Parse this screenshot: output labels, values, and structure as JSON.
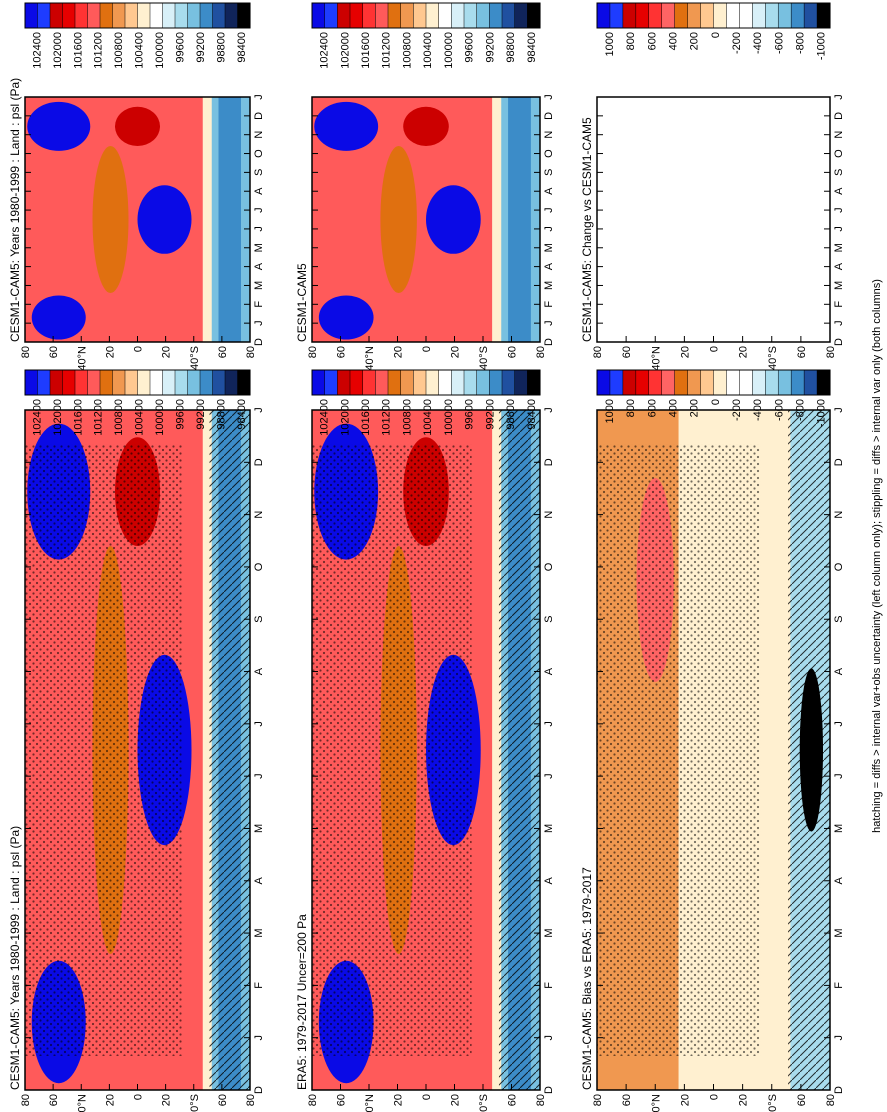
{
  "figure": {
    "footer": "hatching = diffs > internal var+obs uncertainty (left column only); stippling = diffs > internal var only (both columns)"
  },
  "colors": {
    "abs_scale": [
      "#0a0ae6",
      "#1e3cff",
      "#cc0000",
      "#e60000",
      "#ff3333",
      "#ff5a5a",
      "#e07010",
      "#f09850",
      "#ffc890",
      "#fff0d0",
      "#ffffff",
      "#d8f0f8",
      "#a8dced",
      "#78c0e0",
      "#3c8cc8",
      "#2050a0",
      "#10245a",
      "#000000"
    ],
    "diff_scale": [
      "#0a0ae6",
      "#1e3cff",
      "#cc0000",
      "#e60000",
      "#ff3333",
      "#ff6464",
      "#e07010",
      "#f09850",
      "#ffc890",
      "#fff0d0",
      "#ffffff",
      "#ffffff",
      "#d8f0f8",
      "#a8dced",
      "#78c0e0",
      "#3c8cc8",
      "#2050a0",
      "#000000"
    ]
  },
  "chart_data": [
    {
      "type": "heatmap",
      "panel": "top-left",
      "title": "CESM1-CAM5: Years 1980-1999 : Land : psl (Pa)",
      "x_ticks": [
        "D",
        "J",
        "F",
        "M",
        "A",
        "M",
        "J",
        "J",
        "A",
        "S",
        "O",
        "N",
        "D",
        "J"
      ],
      "y_ticks": [
        "80",
        "60",
        "40°N",
        "20",
        "0",
        "20",
        "40°S",
        "60",
        "80"
      ],
      "colorbar_labels": [
        "102400",
        "102000",
        "101600",
        "101200",
        "100800",
        "100400",
        "100000",
        "99600",
        "99200",
        "98800",
        "98400"
      ],
      "hatching": true,
      "stippling": true
    },
    {
      "type": "heatmap",
      "panel": "top-right",
      "title": "CESM1-CAM5: Years 1980-1999 : Land : psl (Pa)",
      "x_ticks": [
        "D",
        "J",
        "F",
        "M",
        "A",
        "M",
        "J",
        "J",
        "A",
        "S",
        "O",
        "N",
        "D",
        "J"
      ],
      "y_ticks": [
        "80",
        "60",
        "40°N",
        "20",
        "0",
        "20",
        "40°S",
        "60",
        "80"
      ],
      "colorbar_labels": [
        "102400",
        "102000",
        "101600",
        "101200",
        "100800",
        "100400",
        "100000",
        "99600",
        "99200",
        "98800",
        "98400"
      ],
      "hatching": false,
      "stippling": false
    },
    {
      "type": "heatmap",
      "panel": "middle-left",
      "title": "ERA5: 1979-2017 Uncer=200 Pa",
      "x_ticks": [
        "D",
        "J",
        "F",
        "M",
        "A",
        "M",
        "J",
        "J",
        "A",
        "S",
        "O",
        "N",
        "D",
        "J"
      ],
      "y_ticks": [
        "80",
        "60",
        "40°N",
        "20",
        "0",
        "20",
        "40°S",
        "60",
        "80"
      ],
      "colorbar_labels": [
        "102400",
        "102000",
        "101600",
        "101200",
        "100800",
        "100400",
        "100000",
        "99600",
        "99200",
        "98800",
        "98400"
      ],
      "hatching": true,
      "stippling": true
    },
    {
      "type": "heatmap",
      "panel": "middle-right",
      "title": "CESM1-CAM5",
      "x_ticks": [
        "D",
        "J",
        "F",
        "M",
        "A",
        "M",
        "J",
        "J",
        "A",
        "S",
        "O",
        "N",
        "D",
        "J"
      ],
      "y_ticks": [
        "80",
        "60",
        "40°N",
        "20",
        "0",
        "20",
        "40°S",
        "60",
        "80"
      ],
      "colorbar_labels": [
        "102400",
        "102000",
        "101600",
        "101200",
        "100800",
        "100400",
        "100000",
        "99600",
        "99200",
        "98800",
        "98400"
      ],
      "hatching": false,
      "stippling": false
    },
    {
      "type": "heatmap",
      "panel": "bottom-left",
      "title": "CESM1-CAM5: Bias vs ERA5: 1979-2017",
      "x_ticks": [
        "D",
        "J",
        "F",
        "M",
        "A",
        "M",
        "J",
        "J",
        "A",
        "S",
        "O",
        "N",
        "D",
        "J"
      ],
      "y_ticks": [
        "80",
        "60",
        "40°N",
        "20",
        "0",
        "20",
        "40°S",
        "60",
        "80"
      ],
      "colorbar_labels": [
        "1000",
        "800",
        "600",
        "400",
        "200",
        "0",
        "-200",
        "-400",
        "-600",
        "-800",
        "-1000"
      ],
      "hatching": true,
      "stippling": true
    },
    {
      "type": "heatmap",
      "panel": "bottom-right",
      "title": "CESM1-CAM5: Change vs CESM1-CAM5",
      "x_ticks": [
        "D",
        "J",
        "F",
        "M",
        "A",
        "M",
        "J",
        "J",
        "A",
        "S",
        "O",
        "N",
        "D",
        "J"
      ],
      "y_ticks": [
        "80",
        "60",
        "40°N",
        "20",
        "0",
        "20",
        "40°S",
        "60",
        "80"
      ],
      "colorbar_labels": [
        "1000",
        "800",
        "600",
        "400",
        "200",
        "0",
        "-200",
        "-400",
        "-600",
        "-800",
        "-1000"
      ],
      "empty": true
    }
  ]
}
